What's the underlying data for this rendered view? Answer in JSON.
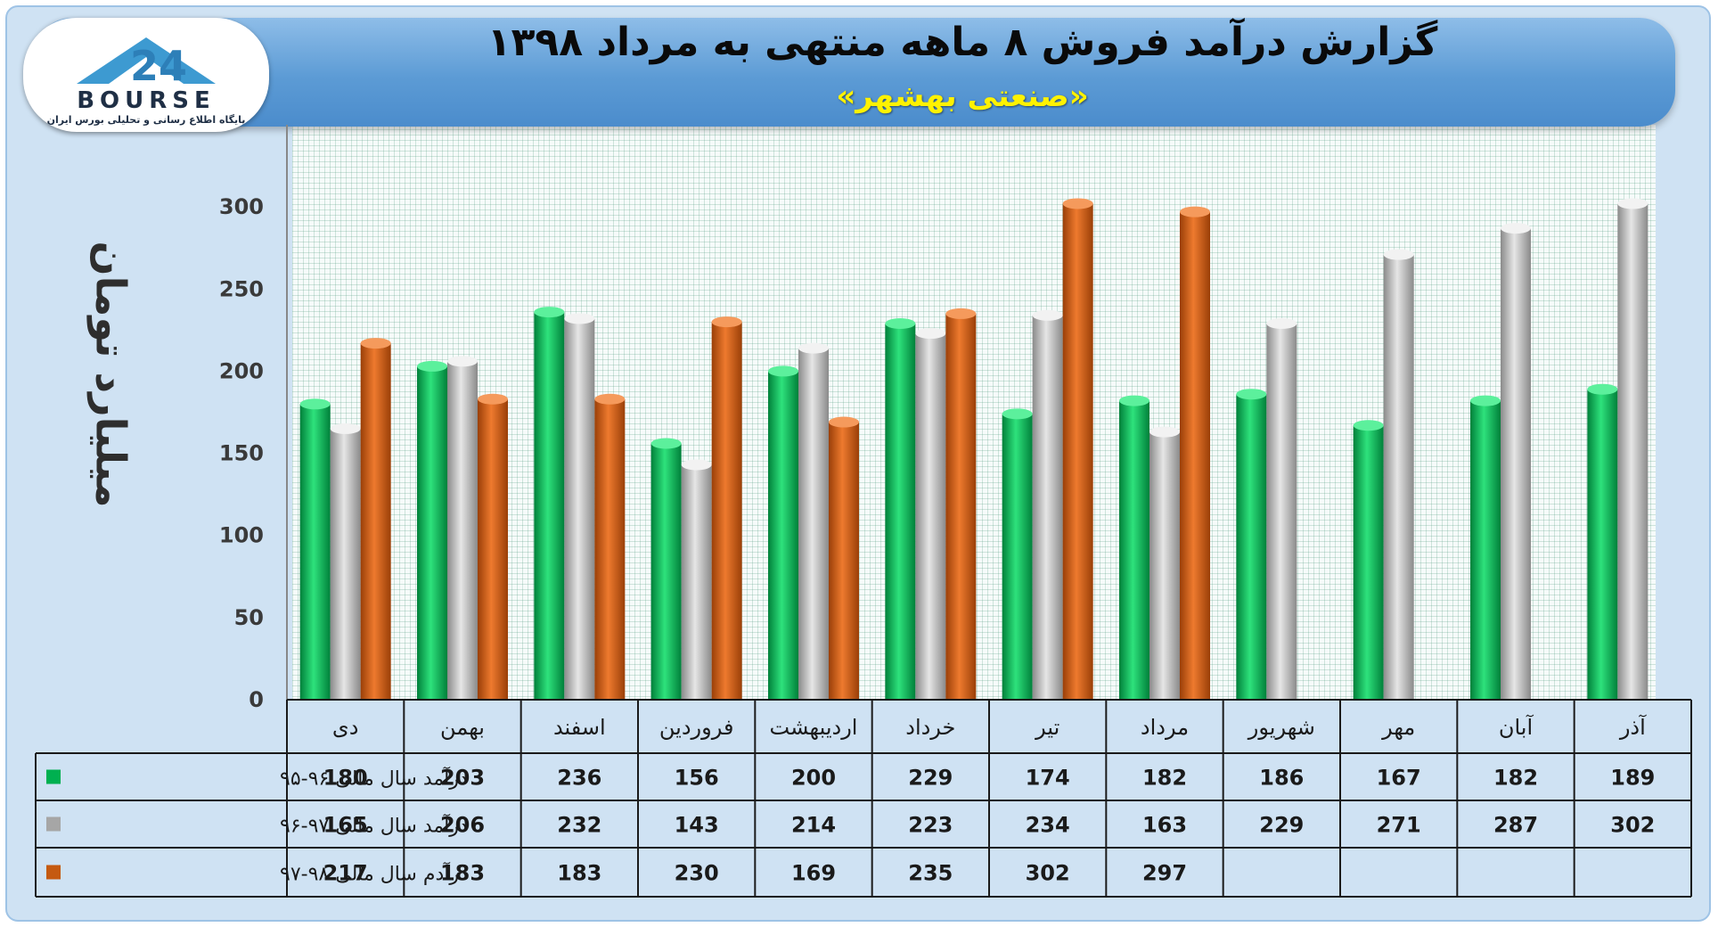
{
  "title": "گزارش درآمد فروش ۸ ماهه منتهی به مرداد ۱۳۹۸",
  "subtitle": "«صنعتی بهشهر»",
  "logo": {
    "text": "BOURSE",
    "subtext": "پایگاه اطلاع رسانی و تحلیلی بورس ایران"
  },
  "colors": {
    "green": "#00b050",
    "gray": "#a6a6a6",
    "orange": "#c55a11"
  },
  "chart_data": {
    "type": "bar",
    "ylabel": "میلیارد تومان",
    "ylim": [
      0,
      350
    ],
    "yticks": [
      "0",
      "50",
      "100",
      "150",
      "200",
      "250",
      "300",
      "350"
    ],
    "categories": [
      "دی",
      "بهمن",
      "اسفند",
      "فروردین",
      "اردیبهشت",
      "خرداد",
      "تیر",
      "مرداد",
      "شهریور",
      "مهر",
      "آبان",
      "آذر"
    ],
    "series": [
      {
        "name": "درآمد سال مالی ۹۶-۹۵",
        "color": "#00b050",
        "values": [
          180,
          203,
          236,
          156,
          200,
          229,
          174,
          182,
          186,
          167,
          182,
          189
        ]
      },
      {
        "name": "درآمد سال مالی ۹۷-۹۶",
        "color": "#a6a6a6",
        "values": [
          165,
          206,
          232,
          143,
          214,
          223,
          234,
          163,
          229,
          271,
          287,
          302
        ]
      },
      {
        "name": "درآدم سال مالی ۹۸-۹۷",
        "color": "#c55a11",
        "values": [
          217,
          183,
          183,
          230,
          169,
          235,
          302,
          297,
          null,
          null,
          null,
          null
        ]
      }
    ],
    "grid": true,
    "legend": "table-left"
  }
}
